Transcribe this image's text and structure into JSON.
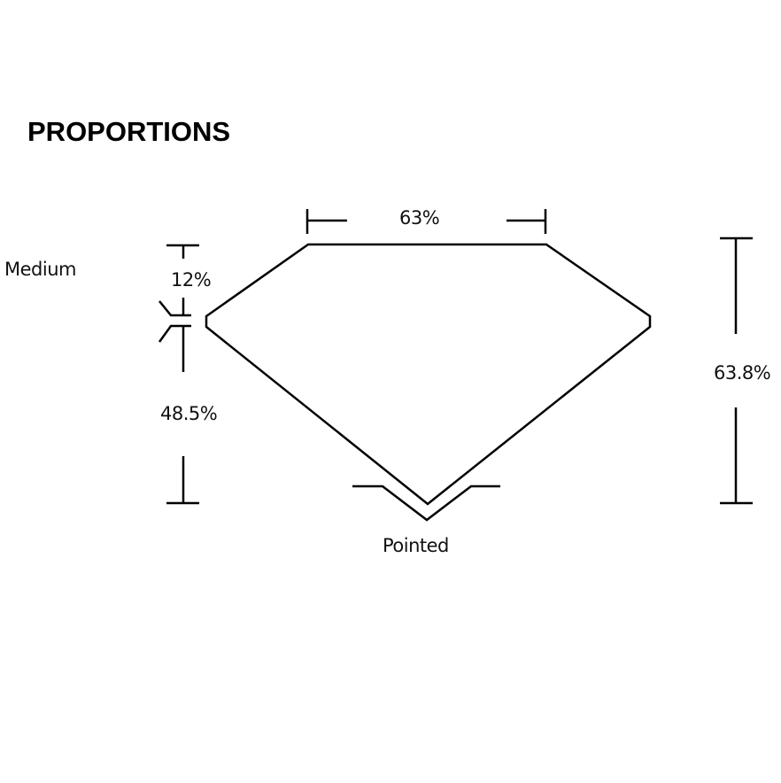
{
  "title": "PROPORTIONS",
  "labels": {
    "table": "63%",
    "crown_height": "12%",
    "girdle": "Medium",
    "pavilion_depth": "48.5%",
    "total_depth": "63.8%",
    "culet": "Pointed"
  },
  "colors": {
    "line": "#000000",
    "background": "#ffffff"
  }
}
